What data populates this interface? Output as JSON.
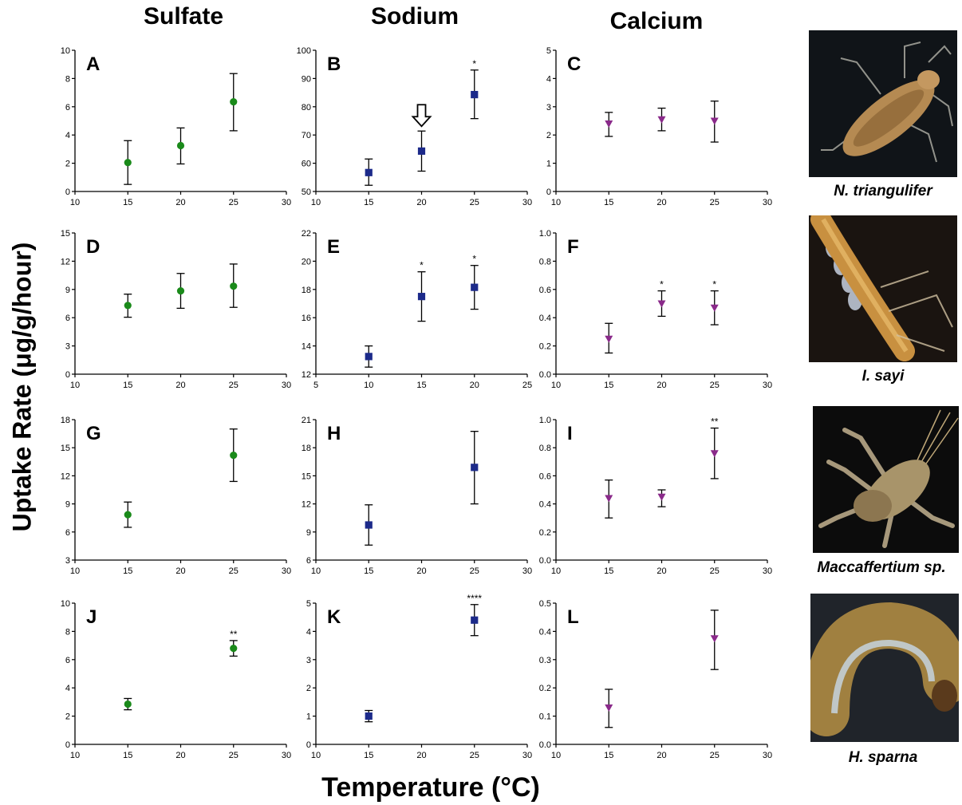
{
  "column_titles": [
    "Sulfate",
    "Sodium",
    "Calcium"
  ],
  "y_axis_label": "Uptake  Rate (μg/g/hour)",
  "x_axis_label": "Temperature (°C)",
  "species": [
    {
      "caption": "N. triangulifer",
      "colors": {
        "bg": "#101418",
        "body": "#b58a52"
      }
    },
    {
      "caption": "I. sayi",
      "colors": {
        "bg": "#1a1410",
        "body": "#c89040"
      }
    },
    {
      "caption": "Maccaffertium sp.",
      "colors": {
        "bg": "#0c0c0c",
        "body": "#a8946a"
      }
    },
    {
      "caption": "H. sparna",
      "colors": {
        "bg": "#20242a",
        "body": "#a08040"
      }
    }
  ],
  "series_colors": {
    "sulfate": "#1a8a1a",
    "sodium": "#1c2a8a",
    "calcium": "#8a2a8a"
  },
  "chart_data": [
    {
      "label": "A",
      "type": "scatter",
      "marker": "circle",
      "color": "#1a8a1a",
      "xlim": [
        10,
        30
      ],
      "xticks": [
        10,
        15,
        20,
        25,
        30
      ],
      "ylim": [
        0,
        10
      ],
      "yticks": [
        0,
        2,
        4,
        6,
        8,
        10
      ],
      "points": [
        {
          "x": 15,
          "y": 2.05,
          "lo": 0.5,
          "hi": 3.6,
          "sig": ""
        },
        {
          "x": 20,
          "y": 3.25,
          "lo": 1.95,
          "hi": 4.5,
          "sig": ""
        },
        {
          "x": 25,
          "y": 6.35,
          "lo": 4.3,
          "hi": 8.35,
          "sig": ""
        }
      ]
    },
    {
      "label": "B",
      "type": "scatter",
      "marker": "square",
      "color": "#1c2a8a",
      "xlim": [
        10,
        30
      ],
      "xticks": [
        10,
        15,
        20,
        25,
        30
      ],
      "ylim": [
        50,
        100
      ],
      "yticks": [
        50,
        60,
        70,
        80,
        90,
        100
      ],
      "points": [
        {
          "x": 15,
          "y": 56.7,
          "lo": 52.2,
          "hi": 61.5,
          "sig": ""
        },
        {
          "x": 20,
          "y": 64.3,
          "lo": 57.2,
          "hi": 71.4,
          "sig": "",
          "arrow": true
        },
        {
          "x": 25,
          "y": 84.3,
          "lo": 75.8,
          "hi": 93.0,
          "sig": "*"
        }
      ]
    },
    {
      "label": "C",
      "type": "scatter",
      "marker": "triangle",
      "color": "#8a2a8a",
      "xlim": [
        10,
        30
      ],
      "xticks": [
        10,
        15,
        20,
        25,
        30
      ],
      "ylim": [
        0,
        5
      ],
      "yticks": [
        0,
        1,
        2,
        3,
        4,
        5
      ],
      "points": [
        {
          "x": 15,
          "y": 2.4,
          "lo": 1.95,
          "hi": 2.8,
          "sig": ""
        },
        {
          "x": 20,
          "y": 2.55,
          "lo": 2.15,
          "hi": 2.95,
          "sig": ""
        },
        {
          "x": 25,
          "y": 2.5,
          "lo": 1.75,
          "hi": 3.2,
          "sig": ""
        }
      ]
    },
    {
      "label": "D",
      "type": "scatter",
      "marker": "circle",
      "color": "#1a8a1a",
      "xlim": [
        10,
        30
      ],
      "xticks": [
        10,
        15,
        20,
        25,
        30
      ],
      "ylim": [
        0,
        15
      ],
      "yticks": [
        0,
        3,
        6,
        9,
        12,
        15
      ],
      "points": [
        {
          "x": 15,
          "y": 7.3,
          "lo": 6.05,
          "hi": 8.5,
          "sig": ""
        },
        {
          "x": 20,
          "y": 8.85,
          "lo": 7.0,
          "hi": 10.7,
          "sig": ""
        },
        {
          "x": 25,
          "y": 9.35,
          "lo": 7.1,
          "hi": 11.7,
          "sig": ""
        }
      ]
    },
    {
      "label": "E",
      "type": "scatter",
      "marker": "square",
      "color": "#1c2a8a",
      "xlim": [
        5,
        25
      ],
      "xticks": [
        5,
        10,
        15,
        20,
        25
      ],
      "ylim": [
        12,
        22
      ],
      "yticks": [
        12,
        14,
        16,
        18,
        20,
        22
      ],
      "points": [
        {
          "x": 10,
          "y": 13.25,
          "lo": 12.5,
          "hi": 14.0,
          "sig": ""
        },
        {
          "x": 15,
          "y": 17.5,
          "lo": 15.75,
          "hi": 19.25,
          "sig": "*"
        },
        {
          "x": 20,
          "y": 18.15,
          "lo": 16.6,
          "hi": 19.7,
          "sig": "*"
        }
      ]
    },
    {
      "label": "F",
      "type": "scatter",
      "marker": "triangle",
      "color": "#8a2a8a",
      "xlim": [
        10,
        30
      ],
      "xticks": [
        10,
        15,
        20,
        25,
        30
      ],
      "ylim": [
        0,
        1
      ],
      "yticks": [
        "0.0",
        "0.2",
        "0.4",
        "0.6",
        "0.8",
        "1.0"
      ],
      "points": [
        {
          "x": 15,
          "y": 0.25,
          "lo": 0.15,
          "hi": 0.36,
          "sig": ""
        },
        {
          "x": 20,
          "y": 0.5,
          "lo": 0.41,
          "hi": 0.59,
          "sig": "*"
        },
        {
          "x": 25,
          "y": 0.47,
          "lo": 0.35,
          "hi": 0.59,
          "sig": "*"
        }
      ]
    },
    {
      "label": "G",
      "type": "scatter",
      "marker": "circle",
      "color": "#1a8a1a",
      "xlim": [
        10,
        30
      ],
      "xticks": [
        10,
        15,
        20,
        25,
        30
      ],
      "ylim": [
        3,
        18
      ],
      "yticks": [
        3,
        6,
        9,
        12,
        15,
        18
      ],
      "points": [
        {
          "x": 15,
          "y": 7.85,
          "lo": 6.5,
          "hi": 9.2,
          "sig": ""
        },
        {
          "x": 25,
          "y": 14.2,
          "lo": 11.4,
          "hi": 17.0,
          "sig": ""
        }
      ]
    },
    {
      "label": "H",
      "type": "scatter",
      "marker": "square",
      "color": "#1c2a8a",
      "xlim": [
        10,
        30
      ],
      "xticks": [
        10,
        15,
        20,
        25,
        30
      ],
      "ylim": [
        6,
        21
      ],
      "yticks": [
        6,
        9,
        12,
        15,
        18,
        21
      ],
      "points": [
        {
          "x": 15,
          "y": 9.75,
          "lo": 7.6,
          "hi": 11.9,
          "sig": ""
        },
        {
          "x": 25,
          "y": 15.9,
          "lo": 12.0,
          "hi": 19.75,
          "sig": ""
        }
      ]
    },
    {
      "label": "I",
      "type": "scatter",
      "marker": "triangle",
      "color": "#8a2a8a",
      "xlim": [
        10,
        30
      ],
      "xticks": [
        10,
        15,
        20,
        25,
        30
      ],
      "ylim": [
        0,
        1
      ],
      "yticks": [
        "0.0",
        "0.2",
        "0.4",
        "0.6",
        "0.8",
        "1.0"
      ],
      "points": [
        {
          "x": 15,
          "y": 0.44,
          "lo": 0.3,
          "hi": 0.57,
          "sig": ""
        },
        {
          "x": 20,
          "y": 0.45,
          "lo": 0.38,
          "hi": 0.5,
          "sig": ""
        },
        {
          "x": 25,
          "y": 0.76,
          "lo": 0.58,
          "hi": 0.94,
          "sig": "**"
        }
      ]
    },
    {
      "label": "J",
      "type": "scatter",
      "marker": "circle",
      "color": "#1a8a1a",
      "xlim": [
        10,
        30
      ],
      "xticks": [
        10,
        15,
        20,
        25,
        30
      ],
      "ylim": [
        0,
        10
      ],
      "yticks": [
        0,
        2,
        4,
        6,
        8,
        10
      ],
      "points": [
        {
          "x": 15,
          "y": 2.85,
          "lo": 2.45,
          "hi": 3.25,
          "sig": ""
        },
        {
          "x": 25,
          "y": 6.8,
          "lo": 6.25,
          "hi": 7.35,
          "sig": "**"
        }
      ]
    },
    {
      "label": "K",
      "type": "scatter",
      "marker": "square",
      "color": "#1c2a8a",
      "xlim": [
        10,
        30
      ],
      "xticks": [
        10,
        15,
        20,
        25,
        30
      ],
      "ylim": [
        0,
        5
      ],
      "yticks": [
        0,
        1,
        2,
        3,
        4,
        5
      ],
      "points": [
        {
          "x": 15,
          "y": 1.0,
          "lo": 0.8,
          "hi": 1.2,
          "sig": ""
        },
        {
          "x": 25,
          "y": 4.4,
          "lo": 3.85,
          "hi": 4.95,
          "sig": "****"
        }
      ]
    },
    {
      "label": "L",
      "type": "scatter",
      "marker": "triangle",
      "color": "#8a2a8a",
      "xlim": [
        10,
        30
      ],
      "xticks": [
        10,
        15,
        20,
        25,
        30
      ],
      "ylim": [
        0,
        0.5
      ],
      "yticks": [
        "0.0",
        "0.1",
        "0.2",
        "0.3",
        "0.4",
        "0.5"
      ],
      "points": [
        {
          "x": 15,
          "y": 0.13,
          "lo": 0.06,
          "hi": 0.195,
          "sig": ""
        },
        {
          "x": 25,
          "y": 0.375,
          "lo": 0.265,
          "hi": 0.475,
          "sig": ""
        }
      ]
    }
  ]
}
